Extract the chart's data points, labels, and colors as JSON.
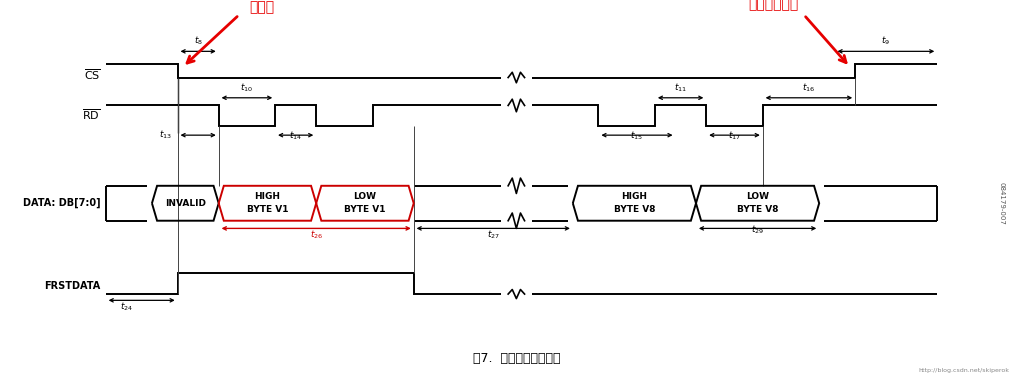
{
  "title": "图7.  字节模式读取操作",
  "bg_color": "#ffffff",
  "signal_color": "#000000",
  "red_color": "#cc0000",
  "annotation_red": "#e60000",
  "figsize": [
    10.31,
    3.81
  ],
  "dpi": 100,
  "xlim": [
    0,
    100
  ],
  "ylim": [
    0,
    10
  ],
  "cs_label": "CS",
  "rd_label": "RD",
  "data_label": "DATA: DB[7:0]",
  "frstdata_label": "FRSTDATA",
  "cs_y_hi": 9.05,
  "cs_y_lo": 8.65,
  "rd_y_hi": 7.85,
  "rd_y_lo": 7.25,
  "dat_y_hi": 5.55,
  "dat_y_lo": 4.55,
  "fr_y_hi": 3.05,
  "fr_y_lo": 2.45,
  "x_cs_fall": 17.0,
  "x_cs_rise": 83.0,
  "x_break": 50.0,
  "x_rd1_fall": 21.0,
  "x_rd1_rise": 26.5,
  "x_rd2_fall": 30.5,
  "x_rd2_rise": 36.0,
  "x_rd3_fall": 58.0,
  "x_rd3_rise": 63.5,
  "x_rd4_fall": 68.5,
  "x_rd4_rise": 74.0,
  "x_inv_l": 14.5,
  "x_inv_r": 21.0,
  "x_hb1_l": 21.0,
  "x_hb1_r": 30.5,
  "x_lb1_l": 30.5,
  "x_lb1_r": 40.0,
  "x_hb8_l": 55.5,
  "x_hb8_r": 67.5,
  "x_lb8_l": 67.5,
  "x_lb8_r": 79.5,
  "x_fr_rise": 17.0,
  "x_fr_fall": 40.0,
  "x_start": 10.0,
  "x_end": 91.0
}
